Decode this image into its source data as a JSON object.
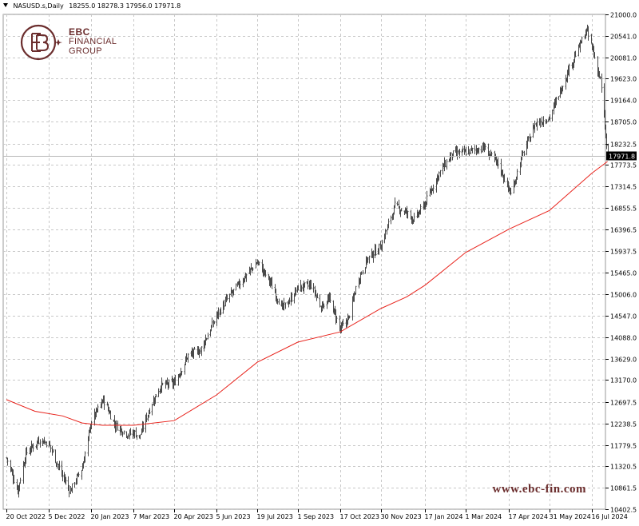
{
  "header": {
    "symbol": "NASUSD.s,Daily",
    "ohlc": "18255.0 18278.3 17956.0 17971.8"
  },
  "logo": {
    "line1": "EBC",
    "line2": "FINANCIAL",
    "line3": "GROUP"
  },
  "watermark": "www.ebc-fin.com",
  "colors": {
    "candles": "#4a4a4a",
    "ma": "#e8231c",
    "grid": "#c8c8c8",
    "brand": "#6b2d2d",
    "price_label_bg": "#000000"
  },
  "chart_data": {
    "type": "line",
    "title": "",
    "xlabel": "",
    "ylabel": "",
    "ylim": [
      10402.5,
      21000.0
    ],
    "grid": true,
    "y_ticks": [
      "21000.0",
      "20541.0",
      "20081.0",
      "19623.0",
      "19164.0",
      "18705.0",
      "18232.5",
      "17773.5",
      "17314.5",
      "16855.5",
      "16396.5",
      "15937.5",
      "15465.0",
      "15006.0",
      "14547.0",
      "14088.0",
      "13629.0",
      "13170.0",
      "12697.5",
      "12238.5",
      "11779.5",
      "11320.5",
      "10861.5",
      "10402.5"
    ],
    "x_ticks": [
      "20 Oct 2022",
      "5 Dec 2022",
      "20 Jan 2023",
      "7 Mar 2023",
      "20 Apr 2023",
      "5 Jun 2023",
      "19 Jul 2023",
      "1 Sep 2023",
      "17 Oct 2023",
      "30 Nov 2023",
      "17 Jan 2024",
      "1 Mar 2024",
      "17 Apr 2024",
      "31 May 2024",
      "16 Jul 2024"
    ],
    "current_price": "17971.8",
    "series": [
      {
        "kind": "price",
        "x": [
          "2022-10-20",
          "2022-11-01",
          "2022-11-10",
          "2022-11-25",
          "2022-12-05",
          "2022-12-20",
          "2022-12-28",
          "2023-01-10",
          "2023-01-20",
          "2023-02-02",
          "2023-02-15",
          "2023-03-01",
          "2023-03-07",
          "2023-03-13",
          "2023-03-25",
          "2023-04-05",
          "2023-04-20",
          "2023-05-05",
          "2023-05-18",
          "2023-06-05",
          "2023-06-16",
          "2023-06-28",
          "2023-07-10",
          "2023-07-19",
          "2023-08-01",
          "2023-08-15",
          "2023-08-24",
          "2023-09-01",
          "2023-09-15",
          "2023-09-26",
          "2023-10-05",
          "2023-10-17",
          "2023-10-26",
          "2023-11-05",
          "2023-11-15",
          "2023-11-30",
          "2023-12-15",
          "2023-12-28",
          "2024-01-05",
          "2024-01-17",
          "2024-02-01",
          "2024-02-15",
          "2024-03-01",
          "2024-03-20",
          "2024-04-05",
          "2024-04-19",
          "2024-05-01",
          "2024-05-15",
          "2024-05-31",
          "2024-06-20",
          "2024-07-10",
          "2024-07-16",
          "2024-07-25",
          "2024-08-02"
        ],
        "values": [
          11500,
          10800,
          11600,
          11900,
          11800,
          11100,
          10800,
          11300,
          12300,
          12750,
          12200,
          12000,
          12050,
          11950,
          12600,
          13050,
          13100,
          13700,
          13800,
          14550,
          14900,
          15200,
          15500,
          15700,
          15300,
          14700,
          14900,
          15150,
          15200,
          14750,
          14900,
          14250,
          14500,
          15300,
          15750,
          16050,
          16900,
          16750,
          16600,
          16950,
          17600,
          18000,
          18050,
          18150,
          17800,
          17150,
          17950,
          18650,
          18800,
          19800,
          20650,
          20300,
          19600,
          17971.8
        ]
      },
      {
        "kind": "ma",
        "x": [
          "2022-10-20",
          "2022-11-20",
          "2022-12-20",
          "2023-01-10",
          "2023-02-01",
          "2023-03-07",
          "2023-04-20",
          "2023-06-05",
          "2023-07-19",
          "2023-09-01",
          "2023-10-17",
          "2023-11-30",
          "2023-12-28",
          "2024-01-17",
          "2024-03-01",
          "2024-04-17",
          "2024-05-31",
          "2024-07-16",
          "2024-08-02"
        ],
        "values": [
          12750,
          12500,
          12400,
          12250,
          12200,
          12200,
          12300,
          12850,
          13550,
          13980,
          14200,
          14700,
          14950,
          15200,
          15900,
          16400,
          16800,
          17600,
          17850
        ]
      }
    ]
  }
}
